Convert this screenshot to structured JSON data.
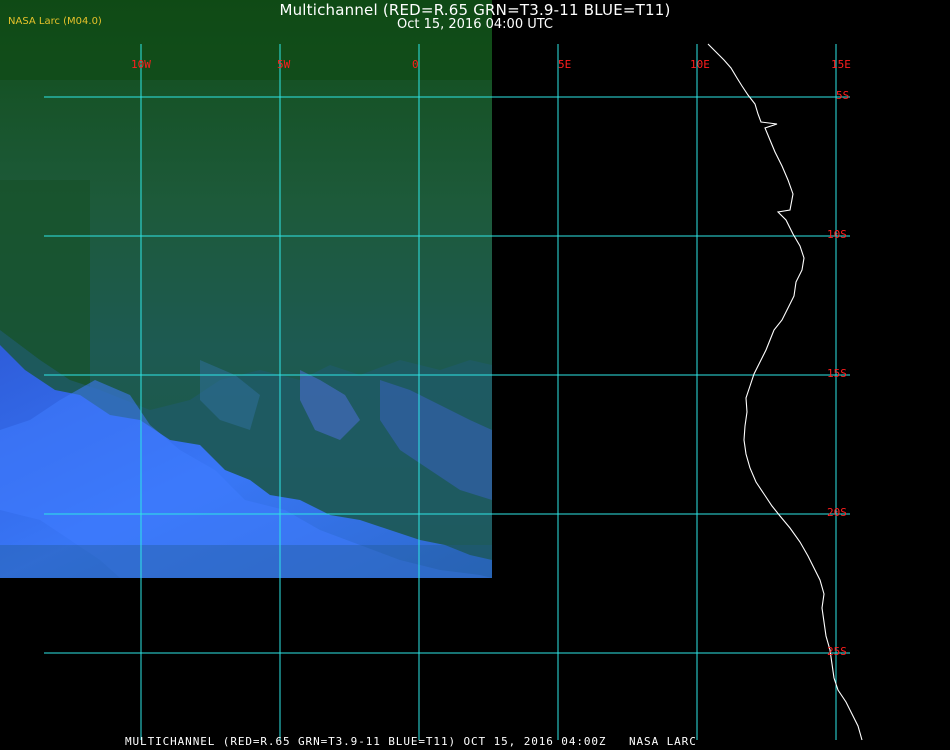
{
  "header": {
    "title": "Multichannel (RED=R.65 GRN=T3.9-11 BLUE=T11)",
    "datetime": "Oct 15, 2016 04:00 UTC"
  },
  "logo": "NASA Larc (M04.0)",
  "footer": "MULTICHANNEL (RED=R.65 GRN=T3.9-11 BLUE=T11) OCT 15, 2016 04:00Z   NASA LARC",
  "map": {
    "longitude_labels": [
      "10W",
      "5W",
      "0",
      "5E",
      "10E",
      "15E"
    ],
    "latitude_labels": [
      "5S",
      "10S",
      "15S",
      "20S",
      "25S"
    ],
    "colors": {
      "background": "#000000",
      "grid": "#2ee6e6",
      "labels": "#ff1e1e",
      "coastline": "#ffffff",
      "imagery_green": "#1c5a2c",
      "imagery_cloud_blue": "#3a6cff"
    }
  }
}
